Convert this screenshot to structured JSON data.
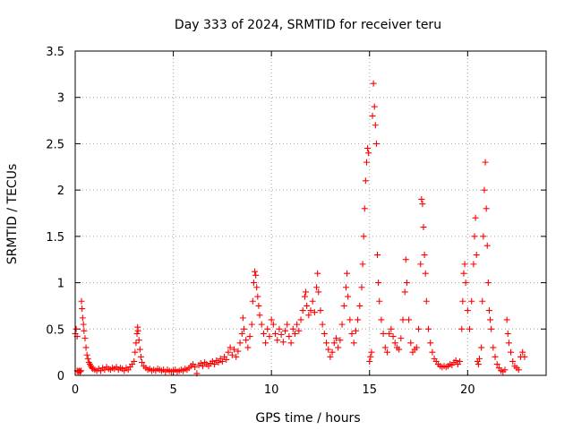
{
  "chart_data": {
    "type": "scatter",
    "title": "Day 333 of 2024, SRMTID for receiver teru",
    "xlabel": "GPS time / hours",
    "ylabel": "SRMTID / TECUs",
    "xlim": [
      0,
      24
    ],
    "ylim": [
      0,
      3.5
    ],
    "x_ticks": [
      0,
      5,
      10,
      15,
      20
    ],
    "x_tick_labels": [
      "0",
      "5",
      "10",
      "15",
      "20"
    ],
    "y_ticks": [
      0,
      0.5,
      1,
      1.5,
      2,
      2.5,
      3,
      3.5
    ],
    "y_tick_labels": [
      "0",
      "0.5",
      "1",
      "1.5",
      "2",
      "2.5",
      "3",
      "3.5"
    ],
    "grid": true,
    "marker": "plus",
    "color": "#ff0000",
    "series": [
      {
        "name": "SRMTID",
        "points": [
          [
            0.0,
            0.45
          ],
          [
            0.05,
            0.5
          ],
          [
            0.1,
            0.42
          ],
          [
            0.1,
            0.05
          ],
          [
            0.15,
            0.04
          ],
          [
            0.2,
            0.05
          ],
          [
            0.25,
            0.04
          ],
          [
            0.3,
            0.05
          ],
          [
            0.32,
            0.8
          ],
          [
            0.35,
            0.72
          ],
          [
            0.38,
            0.62
          ],
          [
            0.42,
            0.55
          ],
          [
            0.45,
            0.48
          ],
          [
            0.5,
            0.4
          ],
          [
            0.55,
            0.3
          ],
          [
            0.6,
            0.22
          ],
          [
            0.65,
            0.18
          ],
          [
            0.7,
            0.14
          ],
          [
            0.75,
            0.12
          ],
          [
            0.8,
            0.1
          ],
          [
            0.85,
            0.08
          ],
          [
            0.9,
            0.07
          ],
          [
            1.0,
            0.06
          ],
          [
            1.1,
            0.05
          ],
          [
            1.2,
            0.07
          ],
          [
            1.3,
            0.05
          ],
          [
            1.4,
            0.08
          ],
          [
            1.5,
            0.06
          ],
          [
            1.6,
            0.09
          ],
          [
            1.7,
            0.07
          ],
          [
            1.8,
            0.06
          ],
          [
            1.9,
            0.08
          ],
          [
            2.0,
            0.07
          ],
          [
            2.1,
            0.09
          ],
          [
            2.2,
            0.06
          ],
          [
            2.3,
            0.08
          ],
          [
            2.4,
            0.07
          ],
          [
            2.5,
            0.05
          ],
          [
            2.6,
            0.08
          ],
          [
            2.7,
            0.06
          ],
          [
            2.8,
            0.09
          ],
          [
            2.9,
            0.12
          ],
          [
            3.0,
            0.15
          ],
          [
            3.05,
            0.25
          ],
          [
            3.1,
            0.35
          ],
          [
            3.15,
            0.45
          ],
          [
            3.18,
            0.52
          ],
          [
            3.2,
            0.48
          ],
          [
            3.25,
            0.38
          ],
          [
            3.3,
            0.28
          ],
          [
            3.35,
            0.2
          ],
          [
            3.4,
            0.14
          ],
          [
            3.5,
            0.1
          ],
          [
            3.6,
            0.08
          ],
          [
            3.7,
            0.06
          ],
          [
            3.8,
            0.07
          ],
          [
            3.9,
            0.05
          ],
          [
            4.0,
            0.06
          ],
          [
            4.1,
            0.05
          ],
          [
            4.2,
            0.07
          ],
          [
            4.3,
            0.06
          ],
          [
            4.4,
            0.05
          ],
          [
            4.5,
            0.06
          ],
          [
            4.6,
            0.04
          ],
          [
            4.7,
            0.06
          ],
          [
            4.8,
            0.05
          ],
          [
            4.9,
            0.04
          ],
          [
            5.0,
            0.05
          ],
          [
            5.1,
            0.06
          ],
          [
            5.2,
            0.04
          ],
          [
            5.3,
            0.05
          ],
          [
            5.4,
            0.06
          ],
          [
            5.5,
            0.05
          ],
          [
            5.6,
            0.07
          ],
          [
            5.7,
            0.06
          ],
          [
            5.8,
            0.08
          ],
          [
            5.9,
            0.1
          ],
          [
            6.0,
            0.12
          ],
          [
            6.1,
            0.09
          ],
          [
            6.2,
            0.02
          ],
          [
            6.3,
            0.11
          ],
          [
            6.4,
            0.13
          ],
          [
            6.5,
            0.1
          ],
          [
            6.6,
            0.14
          ],
          [
            6.7,
            0.12
          ],
          [
            6.8,
            0.1
          ],
          [
            6.9,
            0.13
          ],
          [
            7.0,
            0.15
          ],
          [
            7.1,
            0.12
          ],
          [
            7.2,
            0.16
          ],
          [
            7.3,
            0.14
          ],
          [
            7.4,
            0.18
          ],
          [
            7.5,
            0.15
          ],
          [
            7.6,
            0.2
          ],
          [
            7.7,
            0.17
          ],
          [
            7.8,
            0.25
          ],
          [
            7.9,
            0.3
          ],
          [
            8.0,
            0.22
          ],
          [
            8.1,
            0.28
          ],
          [
            8.2,
            0.2
          ],
          [
            8.3,
            0.26
          ],
          [
            8.4,
            0.35
          ],
          [
            8.5,
            0.45
          ],
          [
            8.55,
            0.62
          ],
          [
            8.6,
            0.5
          ],
          [
            8.7,
            0.38
          ],
          [
            8.8,
            0.3
          ],
          [
            8.9,
            0.42
          ],
          [
            9.0,
            0.55
          ],
          [
            9.05,
            0.8
          ],
          [
            9.1,
            1.0
          ],
          [
            9.15,
            1.12
          ],
          [
            9.2,
            1.08
          ],
          [
            9.25,
            0.95
          ],
          [
            9.3,
            0.85
          ],
          [
            9.35,
            0.75
          ],
          [
            9.4,
            0.65
          ],
          [
            9.5,
            0.55
          ],
          [
            9.6,
            0.45
          ],
          [
            9.7,
            0.35
          ],
          [
            9.8,
            0.5
          ],
          [
            9.9,
            0.42
          ],
          [
            10.0,
            0.6
          ],
          [
            10.1,
            0.55
          ],
          [
            10.2,
            0.45
          ],
          [
            10.3,
            0.38
          ],
          [
            10.4,
            0.5
          ],
          [
            10.5,
            0.44
          ],
          [
            10.6,
            0.36
          ],
          [
            10.7,
            0.48
          ],
          [
            10.8,
            0.55
          ],
          [
            10.9,
            0.42
          ],
          [
            11.0,
            0.35
          ],
          [
            11.1,
            0.5
          ],
          [
            11.2,
            0.45
          ],
          [
            11.3,
            0.55
          ],
          [
            11.4,
            0.48
          ],
          [
            11.5,
            0.6
          ],
          [
            11.6,
            0.7
          ],
          [
            11.7,
            0.85
          ],
          [
            11.75,
            0.9
          ],
          [
            11.8,
            0.75
          ],
          [
            11.9,
            0.65
          ],
          [
            12.0,
            0.7
          ],
          [
            12.1,
            0.8
          ],
          [
            12.2,
            0.68
          ],
          [
            12.3,
            0.95
          ],
          [
            12.35,
            1.1
          ],
          [
            12.4,
            0.9
          ],
          [
            12.5,
            0.7
          ],
          [
            12.6,
            0.55
          ],
          [
            12.7,
            0.45
          ],
          [
            12.8,
            0.35
          ],
          [
            12.9,
            0.28
          ],
          [
            13.0,
            0.2
          ],
          [
            13.1,
            0.25
          ],
          [
            13.2,
            0.35
          ],
          [
            13.3,
            0.4
          ],
          [
            13.4,
            0.3
          ],
          [
            13.5,
            0.38
          ],
          [
            13.6,
            0.55
          ],
          [
            13.7,
            0.75
          ],
          [
            13.8,
            0.95
          ],
          [
            13.85,
            1.1
          ],
          [
            13.9,
            0.85
          ],
          [
            14.0,
            0.6
          ],
          [
            14.1,
            0.45
          ],
          [
            14.2,
            0.35
          ],
          [
            14.3,
            0.48
          ],
          [
            14.4,
            0.6
          ],
          [
            14.5,
            0.75
          ],
          [
            14.6,
            0.95
          ],
          [
            14.65,
            1.2
          ],
          [
            14.7,
            1.5
          ],
          [
            14.75,
            1.8
          ],
          [
            14.8,
            2.1
          ],
          [
            14.85,
            2.3
          ],
          [
            14.9,
            2.45
          ],
          [
            14.95,
            2.4
          ],
          [
            15.0,
            0.15
          ],
          [
            15.05,
            0.2
          ],
          [
            15.1,
            0.25
          ],
          [
            15.15,
            2.8
          ],
          [
            15.2,
            3.15
          ],
          [
            15.25,
            2.9
          ],
          [
            15.3,
            2.7
          ],
          [
            15.35,
            2.5
          ],
          [
            15.4,
            1.3
          ],
          [
            15.45,
            1.0
          ],
          [
            15.5,
            0.8
          ],
          [
            15.6,
            0.6
          ],
          [
            15.7,
            0.45
          ],
          [
            15.8,
            0.3
          ],
          [
            15.9,
            0.25
          ],
          [
            16.0,
            0.45
          ],
          [
            16.1,
            0.5
          ],
          [
            16.2,
            0.42
          ],
          [
            16.3,
            0.35
          ],
          [
            16.4,
            0.3
          ],
          [
            16.5,
            0.28
          ],
          [
            16.6,
            0.4
          ],
          [
            16.7,
            0.6
          ],
          [
            16.8,
            0.9
          ],
          [
            16.85,
            1.25
          ],
          [
            16.9,
            1.0
          ],
          [
            17.0,
            0.6
          ],
          [
            17.1,
            0.35
          ],
          [
            17.2,
            0.25
          ],
          [
            17.3,
            0.28
          ],
          [
            17.4,
            0.3
          ],
          [
            17.5,
            0.5
          ],
          [
            17.6,
            1.2
          ],
          [
            17.65,
            1.9
          ],
          [
            17.7,
            1.85
          ],
          [
            17.75,
            1.6
          ],
          [
            17.8,
            1.3
          ],
          [
            17.85,
            1.1
          ],
          [
            17.9,
            0.8
          ],
          [
            18.0,
            0.5
          ],
          [
            18.1,
            0.35
          ],
          [
            18.2,
            0.25
          ],
          [
            18.3,
            0.18
          ],
          [
            18.4,
            0.15
          ],
          [
            18.5,
            0.12
          ],
          [
            18.6,
            0.1
          ],
          [
            18.7,
            0.09
          ],
          [
            18.8,
            0.1
          ],
          [
            18.9,
            0.09
          ],
          [
            19.0,
            0.1
          ],
          [
            19.1,
            0.12
          ],
          [
            19.2,
            0.11
          ],
          [
            19.3,
            0.14
          ],
          [
            19.4,
            0.16
          ],
          [
            19.5,
            0.12
          ],
          [
            19.6,
            0.15
          ],
          [
            19.7,
            0.5
          ],
          [
            19.75,
            0.8
          ],
          [
            19.8,
            1.1
          ],
          [
            19.85,
            1.2
          ],
          [
            19.9,
            1.0
          ],
          [
            20.0,
            0.7
          ],
          [
            20.1,
            0.5
          ],
          [
            20.2,
            0.8
          ],
          [
            20.3,
            1.2
          ],
          [
            20.35,
            1.5
          ],
          [
            20.4,
            1.7
          ],
          [
            20.45,
            1.3
          ],
          [
            20.5,
            0.15
          ],
          [
            20.55,
            0.12
          ],
          [
            20.6,
            0.18
          ],
          [
            20.7,
            0.3
          ],
          [
            20.75,
            0.8
          ],
          [
            20.8,
            1.5
          ],
          [
            20.85,
            2.0
          ],
          [
            20.9,
            2.3
          ],
          [
            20.95,
            1.8
          ],
          [
            21.0,
            1.4
          ],
          [
            21.05,
            1.0
          ],
          [
            21.1,
            0.7
          ],
          [
            21.15,
            0.6
          ],
          [
            21.2,
            0.5
          ],
          [
            21.3,
            0.3
          ],
          [
            21.4,
            0.2
          ],
          [
            21.5,
            0.12
          ],
          [
            21.6,
            0.08
          ],
          [
            21.7,
            0.05
          ],
          [
            21.8,
            0.04
          ],
          [
            21.9,
            0.06
          ],
          [
            22.0,
            0.6
          ],
          [
            22.05,
            0.45
          ],
          [
            22.1,
            0.35
          ],
          [
            22.2,
            0.25
          ],
          [
            22.3,
            0.15
          ],
          [
            22.4,
            0.1
          ],
          [
            22.5,
            0.08
          ],
          [
            22.6,
            0.06
          ],
          [
            22.7,
            0.2
          ],
          [
            22.8,
            0.25
          ],
          [
            22.9,
            0.2
          ]
        ]
      }
    ]
  }
}
